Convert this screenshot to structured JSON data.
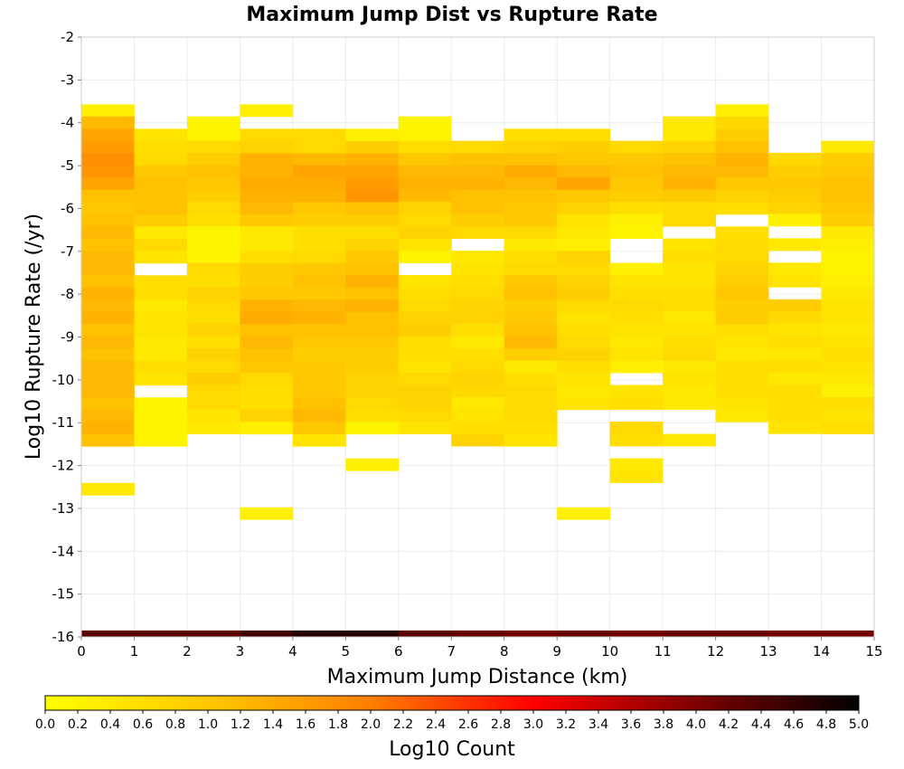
{
  "chart_data": {
    "type": "heatmap",
    "title": "Maximum Jump Dist vs Rupture Rate",
    "xlabel": "Maximum Jump Distance (km)",
    "ylabel": "Log10 Rupture Rate (/yr)",
    "xlim": [
      0,
      15
    ],
    "ylim": [
      -16,
      -2
    ],
    "x_ticks": [
      "0",
      "1",
      "2",
      "3",
      "4",
      "5",
      "6",
      "7",
      "8",
      "9",
      "10",
      "11",
      "12",
      "13",
      "14",
      "15"
    ],
    "y_ticks": [
      "-2",
      "-3",
      "-4",
      "-5",
      "-6",
      "-7",
      "-8",
      "-9",
      "-10",
      "-11",
      "-12",
      "-13",
      "-14",
      "-15",
      "-16"
    ],
    "grid": true,
    "x_bin_width": 1,
    "y_bin_height": 0.285,
    "colorbar": {
      "label": "Log10 Count",
      "min": 0.0,
      "max": 5.0,
      "ticks": [
        "0.0",
        "0.2",
        "0.4",
        "0.6",
        "0.8",
        "1.0",
        "1.2",
        "1.4",
        "1.6",
        "1.8",
        "2.0",
        "2.2",
        "2.4",
        "2.6",
        "2.8",
        "3.0",
        "3.2",
        "3.4",
        "3.6",
        "3.8",
        "4.0",
        "4.2",
        "4.4",
        "4.6",
        "4.8",
        "5.0"
      ],
      "stops": [
        "#ffff00",
        "#ffc800",
        "#ff7f00",
        "#ff0000",
        "#7f0000",
        "#000000"
      ]
    },
    "columns": [
      {
        "x0": 0,
        "y_top": -3.57,
        "values": [
          0.3,
          1.2,
          1.5,
          1.6,
          1.8,
          1.7,
          1.5,
          1.1,
          1.0,
          1.1,
          1.2,
          1.1,
          1.2,
          1.2,
          1.1,
          1.3,
          1.2,
          1.3,
          1.1,
          1.2,
          1.1,
          1.2,
          1.2,
          1.2,
          1.1,
          1.2,
          1.3,
          1.1,
          null,
          null,
          null,
          0.4
        ]
      },
      {
        "x0": 1,
        "y_top": -4.14,
        "values": [
          0.5,
          0.6,
          0.7,
          1.0,
          1.1,
          1.1,
          1.1,
          0.9,
          0.4,
          0.7,
          0.5,
          null,
          0.6,
          0.6,
          0.4,
          0.5,
          0.5,
          0.4,
          0.4,
          0.6,
          0.5,
          null,
          0.2,
          0.2,
          0.2,
          0.2
        ]
      },
      {
        "x0": 2,
        "y_top": -3.85,
        "values": [
          0.2,
          0.2,
          0.7,
          0.9,
          1.1,
          1.0,
          0.9,
          0.7,
          0.6,
          0.2,
          0.2,
          0.2,
          0.7,
          0.6,
          0.8,
          0.7,
          0.6,
          0.8,
          0.6,
          0.8,
          0.7,
          0.9,
          0.7,
          0.7,
          0.5,
          0.4
        ]
      },
      {
        "x0": 3,
        "y_top": -3.57,
        "values": [
          0.3,
          null,
          0.7,
          0.8,
          1.3,
          1.3,
          1.4,
          1.3,
          1.2,
          1.0,
          0.4,
          0.4,
          0.6,
          0.9,
          0.9,
          1.0,
          1.3,
          1.4,
          1.1,
          1.2,
          1.1,
          1.0,
          0.7,
          0.6,
          0.6,
          0.8,
          0.3,
          null,
          null,
          null,
          null,
          null,
          null,
          0.3
        ]
      },
      {
        "x0": 4,
        "y_top": -4.14,
        "values": [
          0.7,
          0.7,
          1.2,
          1.5,
          1.4,
          1.3,
          1.0,
          0.9,
          0.6,
          0.6,
          0.7,
          1.0,
          1.1,
          1.0,
          1.2,
          1.3,
          1.1,
          1.0,
          0.9,
          1.0,
          1.0,
          1.0,
          1.1,
          1.2,
          1.0,
          0.5
        ]
      },
      {
        "x0": 5,
        "y_top": -4.14,
        "values": [
          0.3,
          0.9,
          1.3,
          1.5,
          1.6,
          1.7,
          1.1,
          0.9,
          0.6,
          0.8,
          1.0,
          1.1,
          1.3,
          1.1,
          1.3,
          1.1,
          1.1,
          1.0,
          0.9,
          0.9,
          0.8,
          0.8,
          0.7,
          0.6,
          0.2,
          null,
          null,
          0.3
        ]
      },
      {
        "x0": 6,
        "y_top": -3.85,
        "values": [
          0.2,
          0.2,
          0.6,
          1.0,
          1.2,
          1.3,
          1.2,
          0.8,
          0.7,
          0.8,
          0.5,
          0.2,
          null,
          0.5,
          0.6,
          0.7,
          0.8,
          0.9,
          0.6,
          0.6,
          0.5,
          0.7,
          0.8,
          0.8,
          0.7,
          0.5
        ]
      },
      {
        "x0": 7,
        "y_top": -4.42,
        "values": [
          0.7,
          1.1,
          1.2,
          1.3,
          1.1,
          1.1,
          0.9,
          0.7,
          null,
          0.4,
          0.5,
          0.6,
          0.7,
          0.8,
          0.8,
          0.6,
          0.4,
          0.6,
          0.7,
          0.8,
          0.7,
          0.4,
          0.5,
          0.6,
          0.8
        ]
      },
      {
        "x0": 8,
        "y_top": -4.14,
        "values": [
          0.6,
          0.8,
          1.1,
          1.4,
          1.2,
          1.1,
          1.0,
          1.0,
          0.7,
          0.4,
          0.6,
          0.7,
          1.0,
          1.1,
          0.9,
          1.0,
          1.1,
          1.2,
          0.9,
          0.4,
          0.6,
          0.7,
          0.7,
          0.7,
          0.6,
          0.5
        ]
      },
      {
        "x0": 9,
        "y_top": -4.14,
        "values": [
          0.6,
          0.9,
          1.0,
          1.2,
          1.5,
          1.0,
          0.8,
          0.5,
          0.4,
          0.3,
          0.8,
          0.7,
          0.8,
          0.9,
          0.7,
          0.5,
          0.6,
          0.7,
          0.8,
          0.6,
          0.5,
          0.4,
          0.5,
          null,
          null,
          null,
          null,
          null,
          null,
          null,
          null,
          0.3
        ]
      },
      {
        "x0": 10,
        "y_top": -4.42,
        "values": [
          0.7,
          1.0,
          1.1,
          1.0,
          0.9,
          0.6,
          0.3,
          0.2,
          null,
          null,
          0.3,
          0.5,
          0.6,
          0.7,
          0.6,
          0.5,
          0.4,
          0.5,
          0.3,
          null,
          0.5,
          0.6,
          null,
          0.7,
          0.6,
          null,
          0.4,
          0.5
        ]
      },
      {
        "x0": 11,
        "y_top": -3.85,
        "values": [
          0.4,
          0.4,
          0.8,
          1.1,
          1.2,
          1.3,
          1.0,
          0.7,
          0.7,
          null,
          0.5,
          0.6,
          0.5,
          0.5,
          0.6,
          0.6,
          0.4,
          0.5,
          0.6,
          0.7,
          0.4,
          0.5,
          0.4,
          0.4,
          null,
          null,
          0.4
        ]
      },
      {
        "x0": 12,
        "y_top": -3.57,
        "values": [
          0.3,
          0.7,
          0.9,
          1.1,
          1.3,
          1.2,
          1.0,
          0.8,
          0.6,
          null,
          0.6,
          0.7,
          0.7,
          0.8,
          0.9,
          1.0,
          0.9,
          0.9,
          0.6,
          0.5,
          0.4,
          0.6,
          0.6,
          0.6,
          0.5,
          0.4
        ]
      },
      {
        "x0": 13,
        "y_top": -4.7,
        "values": [
          0.7,
          0.9,
          1.0,
          0.9,
          0.8,
          0.3,
          null,
          0.4,
          null,
          0.4,
          0.5,
          null,
          0.9,
          0.7,
          0.5,
          0.6,
          0.4,
          0.6,
          0.4,
          0.6,
          0.6,
          0.6,
          0.5
        ]
      },
      {
        "x0": 14,
        "y_top": -4.42,
        "values": [
          0.4,
          0.9,
          1.0,
          1.1,
          1.1,
          1.0,
          0.9,
          0.4,
          0.3,
          0.2,
          0.2,
          0.3,
          0.4,
          0.5,
          0.5,
          0.4,
          0.5,
          0.6,
          0.5,
          0.4,
          0.3,
          0.6,
          0.5,
          0.6
        ]
      }
    ],
    "bottom_row": {
      "y_top": -15.85,
      "y_bottom": -16.0,
      "values": [
        4.3,
        4.3,
        4.3,
        4.5,
        4.7,
        4.7,
        4.3,
        4.2,
        4.1,
        4.2,
        4.1,
        4.2,
        4.2,
        4.1,
        4.1
      ]
    }
  }
}
